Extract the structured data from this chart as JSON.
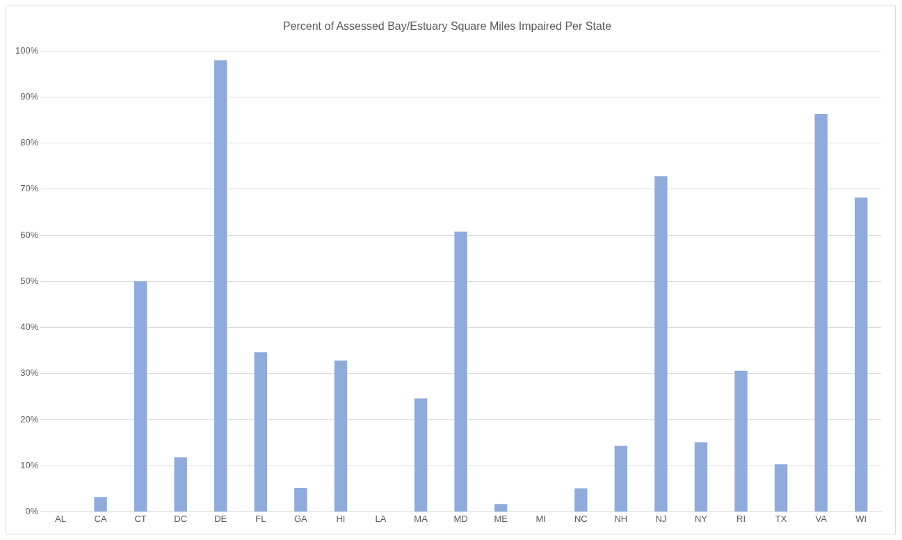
{
  "chart_data": {
    "type": "bar",
    "title": "Percent of Assessed Bay/Estuary Square Miles Impaired Per State",
    "categories": [
      "AL",
      "CA",
      "CT",
      "DC",
      "DE",
      "FL",
      "GA",
      "HI",
      "LA",
      "MA",
      "MD",
      "ME",
      "MI",
      "NC",
      "NH",
      "NJ",
      "NY",
      "RI",
      "TX",
      "VA",
      "WI"
    ],
    "values": [
      0,
      3.2,
      50,
      11.8,
      98,
      34.6,
      5.2,
      32.8,
      0,
      24.6,
      60.8,
      1.7,
      0,
      5.1,
      14.3,
      72.8,
      15.1,
      30.6,
      10.3,
      86.3,
      68.2
    ],
    "color": "#8faadc",
    "ylim": [
      0,
      100
    ],
    "yticks": [
      {
        "value": 0,
        "label": "0%"
      },
      {
        "value": 10,
        "label": "10%"
      },
      {
        "value": 20,
        "label": "20%"
      },
      {
        "value": 30,
        "label": "30%"
      },
      {
        "value": 40,
        "label": "40%"
      },
      {
        "value": 50,
        "label": "50%"
      },
      {
        "value": 60,
        "label": "60%"
      },
      {
        "value": 70,
        "label": "70%"
      },
      {
        "value": 80,
        "label": "80%"
      },
      {
        "value": 90,
        "label": "90%"
      },
      {
        "value": 100,
        "label": "100%"
      }
    ],
    "grid": "y"
  }
}
